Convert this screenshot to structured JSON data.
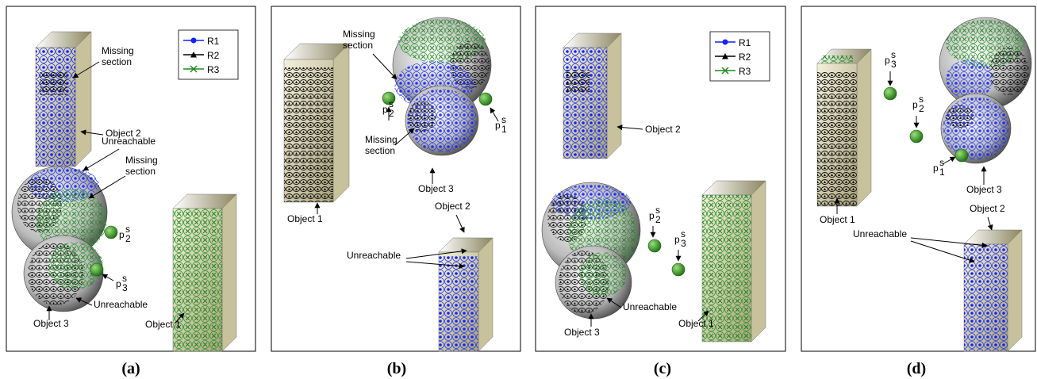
{
  "panels": [
    {
      "label": "(a)",
      "legend": [
        "R1",
        "R2",
        "R3"
      ],
      "annotations": [
        {
          "lines": [
            "Missing",
            "section"
          ]
        },
        {
          "lines": [
            "Object 2"
          ]
        },
        {
          "lines": [
            "Unreachable"
          ]
        },
        {
          "lines": [
            "Missing",
            "section"
          ]
        },
        {
          "lines": [
            "Unreachable"
          ]
        },
        {
          "lines": [
            "Object 3"
          ]
        },
        {
          "lines": [
            "Object 1"
          ]
        }
      ],
      "points": [
        {
          "base": "p",
          "sup": "s",
          "sub": "2"
        },
        {
          "base": "p",
          "sup": "s",
          "sub": "3"
        }
      ]
    },
    {
      "label": "(b)",
      "annotations": [
        {
          "lines": [
            "Missing",
            "section"
          ]
        },
        {
          "lines": [
            "Missing",
            "section"
          ]
        },
        {
          "lines": [
            "Object 3"
          ]
        },
        {
          "lines": [
            "Object 2"
          ]
        },
        {
          "lines": [
            "Unreachable"
          ]
        },
        {
          "lines": [
            "Object 1"
          ]
        }
      ],
      "points": [
        {
          "base": "p",
          "sup": "s",
          "sub": "2"
        },
        {
          "base": "p",
          "sup": "s",
          "sub": "1"
        }
      ]
    },
    {
      "label": "(c)",
      "legend": [
        "R1",
        "R2",
        "R3"
      ],
      "annotations": [
        {
          "lines": [
            "Object 2"
          ]
        },
        {
          "lines": [
            "Unreachable"
          ]
        },
        {
          "lines": [
            "Object 3"
          ]
        },
        {
          "lines": [
            "Object 1"
          ]
        }
      ],
      "points": [
        {
          "base": "p",
          "sup": "s",
          "sub": "2"
        },
        {
          "base": "p",
          "sup": "s",
          "sub": "3"
        }
      ]
    },
    {
      "label": "(d)",
      "annotations": [
        {
          "lines": [
            "Object 1"
          ]
        },
        {
          "lines": [
            "Object 3"
          ]
        },
        {
          "lines": [
            "Object 2"
          ]
        },
        {
          "lines": [
            "Unreachable"
          ]
        }
      ],
      "points": [
        {
          "base": "p",
          "sup": "s",
          "sub": "3"
        },
        {
          "base": "p",
          "sup": "s",
          "sub": "2"
        },
        {
          "base": "p",
          "sup": "s",
          "sub": "1"
        }
      ]
    }
  ]
}
